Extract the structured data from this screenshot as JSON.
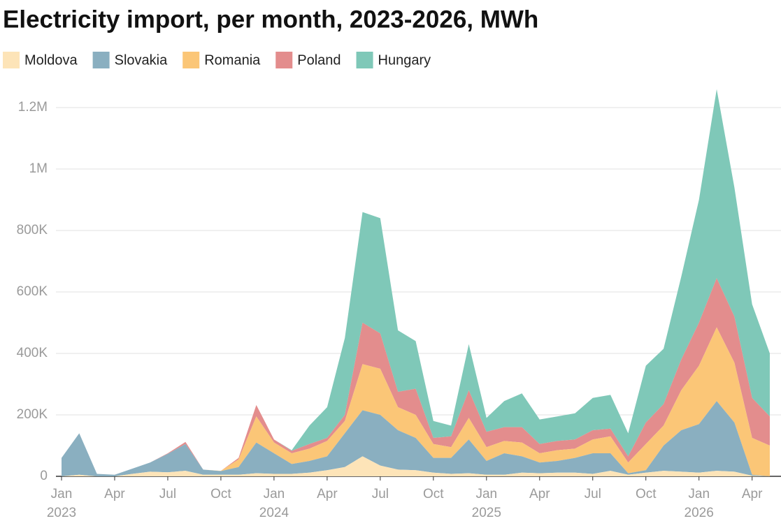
{
  "chart_data": {
    "type": "stacked_area",
    "title": "Electricity import, per month, 2023-2026, MWh",
    "x": [
      "2023-01",
      "2023-02",
      "2023-03",
      "2023-04",
      "2023-05",
      "2023-06",
      "2023-07",
      "2023-08",
      "2023-09",
      "2023-10",
      "2023-11",
      "2023-12",
      "2024-01",
      "2024-02",
      "2024-03",
      "2024-04",
      "2024-05",
      "2024-06",
      "2024-07",
      "2024-08",
      "2024-09",
      "2024-10",
      "2024-11",
      "2024-12",
      "2025-01",
      "2025-02",
      "2025-03",
      "2025-04",
      "2025-05",
      "2025-06",
      "2025-07",
      "2025-08",
      "2025-09",
      "2025-10",
      "2025-11",
      "2025-12",
      "2026-01",
      "2026-02",
      "2026-03",
      "2026-04",
      "2026-05"
    ],
    "xticks": [
      {
        "value": "2023-01",
        "label": "Jan 2023"
      },
      {
        "value": "2023-04",
        "label": "Apr"
      },
      {
        "value": "2023-07",
        "label": "Jul"
      },
      {
        "value": "2023-10",
        "label": "Oct"
      },
      {
        "value": "2024-01",
        "label": "Jan 2024"
      },
      {
        "value": "2024-04",
        "label": "Apr"
      },
      {
        "value": "2024-07",
        "label": "Jul"
      },
      {
        "value": "2024-10",
        "label": "Oct"
      },
      {
        "value": "2025-01",
        "label": "Jan 2025"
      },
      {
        "value": "2025-04",
        "label": "Apr"
      },
      {
        "value": "2025-07",
        "label": "Jul"
      },
      {
        "value": "2025-10",
        "label": "Oct"
      },
      {
        "value": "2026-01",
        "label": "Jan 2026"
      },
      {
        "value": "2026-04",
        "label": "Apr"
      }
    ],
    "ylim": [
      0,
      1280000
    ],
    "yticks": [
      0,
      {
        "value": 200000,
        "label": "200K"
      },
      {
        "value": 400000,
        "label": "400K"
      },
      {
        "value": 600000,
        "label": "600K"
      },
      {
        "value": 800000,
        "label": "800K"
      },
      {
        "value": 1000000,
        "label": "1M"
      },
      {
        "value": 1200000,
        "label": "1.2M"
      }
    ],
    "grid": true,
    "legend": "top",
    "series": [
      {
        "name": "Moldova",
        "color": "#fde4b8",
        "values": [
          0,
          5000,
          0,
          0,
          8000,
          15000,
          13000,
          18000,
          5000,
          5000,
          5000,
          10000,
          8000,
          8000,
          12000,
          20000,
          30000,
          65000,
          35000,
          22000,
          20000,
          12000,
          8000,
          10000,
          5000,
          5000,
          12000,
          10000,
          12000,
          12000,
          8000,
          18000,
          5000,
          12000,
          18000,
          15000,
          12000,
          18000,
          15000,
          2000,
          0
        ]
      },
      {
        "name": "Slovakia",
        "color": "#8aafc0",
        "values": [
          60000,
          135000,
          8000,
          5000,
          17000,
          30000,
          60000,
          87000,
          17000,
          12000,
          25000,
          100000,
          67000,
          32000,
          38000,
          45000,
          110000,
          150000,
          165000,
          128000,
          105000,
          48000,
          52000,
          110000,
          45000,
          70000,
          53000,
          35000,
          38000,
          48000,
          67000,
          57000,
          5000,
          8000,
          82000,
          135000,
          158000,
          227000,
          160000,
          3000,
          0
        ]
      },
      {
        "name": "Romania",
        "color": "#fbc677",
        "values": [
          0,
          0,
          0,
          0,
          0,
          0,
          0,
          0,
          0,
          1000,
          25000,
          85000,
          35000,
          35000,
          40000,
          50000,
          40000,
          150000,
          150000,
          75000,
          75000,
          45000,
          35000,
          70000,
          45000,
          40000,
          45000,
          30000,
          35000,
          30000,
          45000,
          55000,
          35000,
          85000,
          65000,
          130000,
          190000,
          240000,
          195000,
          120000,
          100000
        ]
      },
      {
        "name": "Poland",
        "color": "#e38d8d",
        "values": [
          0,
          0,
          0,
          0,
          0,
          0,
          2000,
          7000,
          0,
          0,
          5000,
          37000,
          10000,
          8000,
          15000,
          10000,
          20000,
          135000,
          115000,
          50000,
          85000,
          20000,
          35000,
          90000,
          50000,
          45000,
          50000,
          30000,
          30000,
          30000,
          30000,
          25000,
          20000,
          70000,
          70000,
          100000,
          140000,
          160000,
          150000,
          130000,
          95000
        ]
      },
      {
        "name": "Hungary",
        "color": "#7fc8b8",
        "values": [
          0,
          0,
          0,
          0,
          0,
          0,
          0,
          0,
          0,
          0,
          0,
          0,
          0,
          2000,
          60000,
          100000,
          250000,
          360000,
          375000,
          200000,
          155000,
          55000,
          35000,
          150000,
          45000,
          85000,
          110000,
          80000,
          80000,
          85000,
          105000,
          110000,
          75000,
          185000,
          180000,
          270000,
          400000,
          615000,
          420000,
          305000,
          205000
        ]
      }
    ]
  }
}
